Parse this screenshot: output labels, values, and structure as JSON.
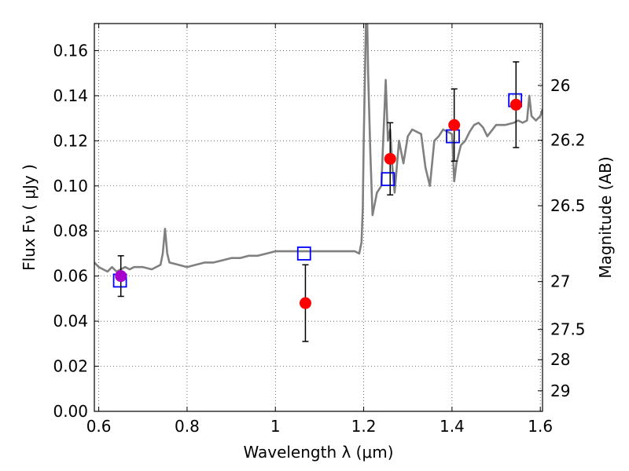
{
  "chart_data": {
    "type": "scatter",
    "xlabel": "Wavelength  λ (μm)",
    "ylabel": "Flux  Fν  ( μJy )",
    "ylabel_right": "Magnitude (AB)",
    "xlim": [
      0.59,
      1.605
    ],
    "ylim": [
      0.0,
      0.172
    ],
    "grid": true,
    "x_ticks": [
      {
        "value": 0.6,
        "label": "0.6"
      },
      {
        "value": 0.8,
        "label": "0.8"
      },
      {
        "value": 1.0,
        "label": "1"
      },
      {
        "value": 1.2,
        "label": "1.2"
      },
      {
        "value": 1.4,
        "label": "1.4"
      },
      {
        "value": 1.6,
        "label": "1.6"
      }
    ],
    "y_ticks": [
      {
        "value": 0.0,
        "label": "0.00"
      },
      {
        "value": 0.02,
        "label": "0.02"
      },
      {
        "value": 0.04,
        "label": "0.04"
      },
      {
        "value": 0.06,
        "label": "0.06"
      },
      {
        "value": 0.08,
        "label": "0.08"
      },
      {
        "value": 0.1,
        "label": "0.10"
      },
      {
        "value": 0.12,
        "label": "0.12"
      },
      {
        "value": 0.14,
        "label": "0.14"
      },
      {
        "value": 0.16,
        "label": "0.16"
      }
    ],
    "right_ticks": [
      {
        "mag": 26.0,
        "label": "26"
      },
      {
        "mag": 26.2,
        "label": "26.2"
      },
      {
        "mag": 26.5,
        "label": "26.5"
      },
      {
        "mag": 27.0,
        "label": "27"
      },
      {
        "mag": 27.5,
        "label": "27.5"
      },
      {
        "mag": 28.0,
        "label": "28"
      },
      {
        "mag": 29.0,
        "label": "29"
      }
    ],
    "series": [
      {
        "kind": "line",
        "color": "#808080",
        "x": [
          0.59,
          0.6,
          0.61,
          0.62,
          0.63,
          0.64,
          0.65,
          0.66,
          0.67,
          0.68,
          0.7,
          0.72,
          0.74,
          0.745,
          0.75,
          0.755,
          0.76,
          0.78,
          0.8,
          0.82,
          0.84,
          0.86,
          0.88,
          0.9,
          0.92,
          0.94,
          0.96,
          0.98,
          1.0,
          1.02,
          1.04,
          1.06,
          1.08,
          1.1,
          1.12,
          1.14,
          1.16,
          1.18,
          1.19,
          1.195,
          1.198,
          1.2,
          1.205,
          1.208,
          1.21,
          1.215,
          1.22,
          1.225,
          1.23,
          1.24,
          1.25,
          1.255,
          1.26,
          1.265,
          1.27,
          1.28,
          1.29,
          1.3,
          1.31,
          1.32,
          1.33,
          1.34,
          1.35,
          1.36,
          1.37,
          1.38,
          1.39,
          1.4,
          1.405,
          1.41,
          1.42,
          1.43,
          1.44,
          1.45,
          1.46,
          1.47,
          1.48,
          1.5,
          1.52,
          1.54,
          1.55,
          1.56,
          1.57,
          1.575,
          1.58,
          1.59,
          1.6,
          1.605
        ],
        "y": [
          0.066,
          0.064,
          0.063,
          0.062,
          0.064,
          0.062,
          0.063,
          0.064,
          0.063,
          0.064,
          0.064,
          0.063,
          0.065,
          0.07,
          0.081,
          0.07,
          0.066,
          0.065,
          0.064,
          0.065,
          0.066,
          0.066,
          0.067,
          0.068,
          0.068,
          0.069,
          0.069,
          0.07,
          0.071,
          0.071,
          0.071,
          0.071,
          0.071,
          0.071,
          0.071,
          0.071,
          0.071,
          0.071,
          0.07,
          0.075,
          0.09,
          0.12,
          0.172,
          0.172,
          0.15,
          0.115,
          0.087,
          0.092,
          0.097,
          0.1,
          0.147,
          0.12,
          0.125,
          0.108,
          0.097,
          0.12,
          0.11,
          0.122,
          0.125,
          0.124,
          0.123,
          0.108,
          0.1,
          0.12,
          0.122,
          0.125,
          0.124,
          0.123,
          0.102,
          0.11,
          0.118,
          0.12,
          0.124,
          0.127,
          0.128,
          0.126,
          0.122,
          0.127,
          0.127,
          0.128,
          0.129,
          0.128,
          0.129,
          0.14,
          0.131,
          0.129,
          0.131,
          0.134
        ]
      },
      {
        "kind": "squares",
        "color": "#0000ff",
        "x": [
          0.648,
          1.065,
          1.255,
          1.402,
          1.543
        ],
        "y": [
          0.058,
          0.07,
          0.103,
          0.122,
          0.138
        ]
      },
      {
        "kind": "points_with_errors",
        "color": "#ff0000",
        "x": [
          0.65,
          1.068,
          1.26,
          1.405,
          1.545
        ],
        "y": [
          0.06,
          0.048,
          0.112,
          0.127,
          0.136
        ],
        "yerr": [
          0.009,
          0.017,
          0.016,
          0.016,
          0.019
        ]
      }
    ]
  }
}
